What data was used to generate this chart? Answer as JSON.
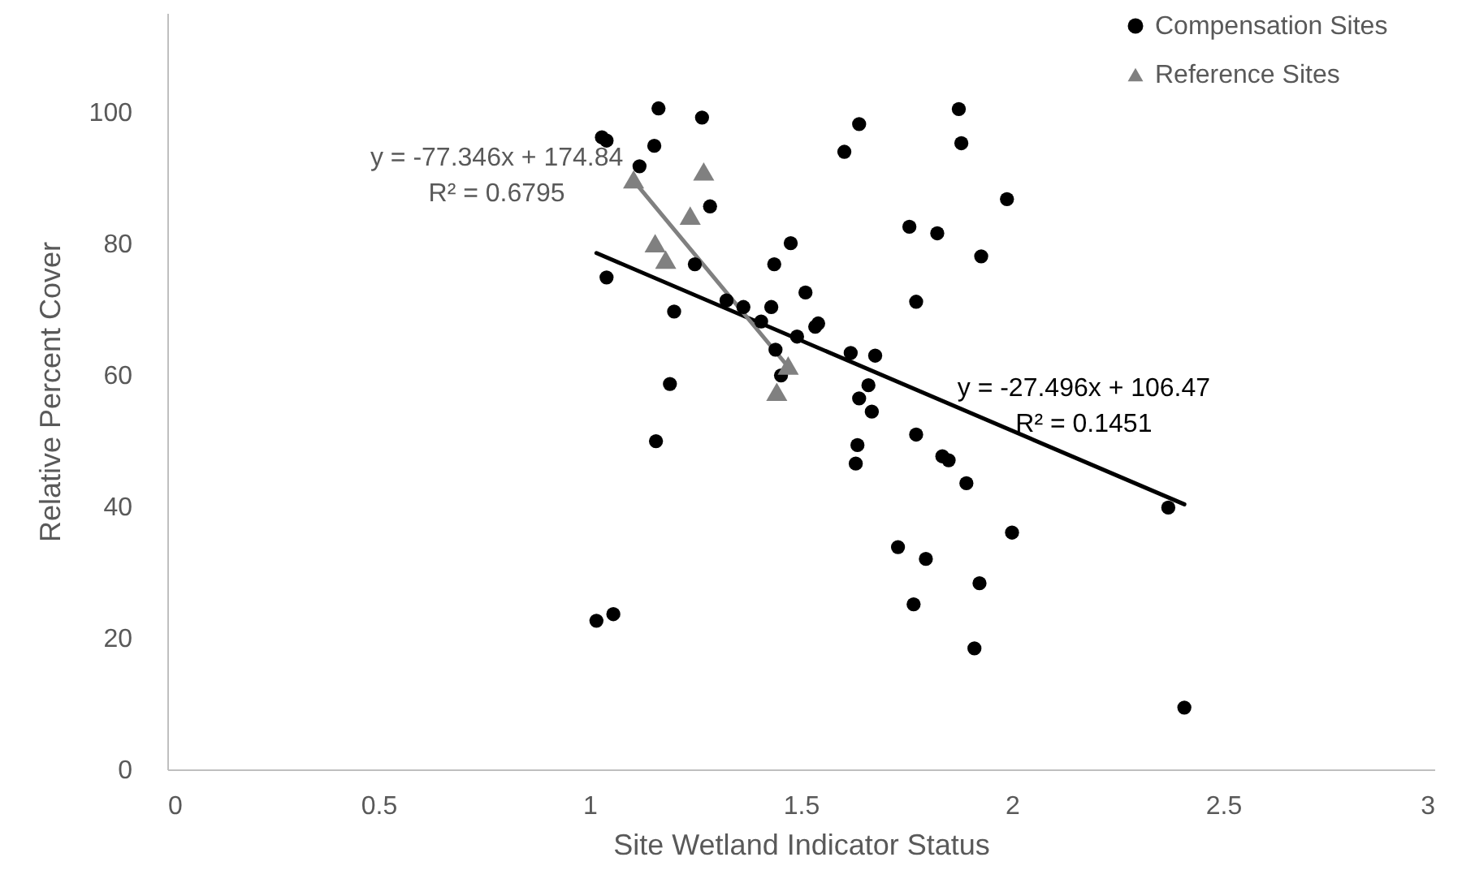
{
  "chart_data": {
    "type": "scatter",
    "xlabel": "Site Wetland Indicator Status",
    "ylabel": "Relative Percent Cover",
    "xlim": [
      0,
      3
    ],
    "xticks": [
      0,
      0.5,
      1,
      1.5,
      2,
      2.5,
      3
    ],
    "ylim": [
      0,
      115
    ],
    "yticks": [
      0,
      20,
      40,
      60,
      80,
      100
    ],
    "grid": false,
    "legend": "top right",
    "series": [
      {
        "name": "Compensation Sites",
        "marker": "circle",
        "color": "#000000",
        "x": [
          1.029,
          1.04,
          1.163,
          1.266,
          1.153,
          1.118,
          1.285,
          1.04,
          1.249,
          1.2,
          1.324,
          1.19,
          1.157,
          1.016,
          1.056,
          1.638,
          1.603,
          1.874,
          1.88,
          1.988,
          1.757,
          1.823,
          1.927,
          1.476,
          1.437,
          1.773,
          1.511,
          1.364,
          1.43,
          1.406,
          1.534,
          1.541,
          1.491,
          1.44,
          1.453,
          1.618,
          1.676,
          1.66,
          1.638,
          1.668,
          1.634,
          1.773,
          1.63,
          1.835,
          1.85,
          1.892,
          2.37,
          2.0,
          1.73,
          1.796,
          1.923,
          1.767,
          1.911,
          2.408
        ],
        "values": [
          96.1,
          95.6,
          100.5,
          99.1,
          94.8,
          91.7,
          85.6,
          74.8,
          76.8,
          69.6,
          71.3,
          58.6,
          49.9,
          22.6,
          23.6,
          98.1,
          93.9,
          100.4,
          95.2,
          86.7,
          82.5,
          81.5,
          78,
          80,
          76.8,
          71.1,
          72.5,
          70.3,
          70.3,
          68.1,
          67.3,
          67.8,
          65.8,
          63.8,
          59.9,
          63.3,
          62.9,
          58.4,
          56.4,
          54.4,
          49.3,
          50.9,
          46.5,
          47.6,
          47,
          43.5,
          39.8,
          36,
          33.8,
          32,
          28.3,
          25.1,
          18.4,
          9.4
        ]
      },
      {
        "name": "Reference Sites",
        "marker": "triangle",
        "color": "#808080",
        "x": [
          1.104,
          1.27,
          1.238,
          1.155,
          1.18,
          1.47,
          1.443
        ],
        "values": [
          89.7,
          90.9,
          84.2,
          80,
          77.5,
          61.4,
          57.4
        ]
      },
      {
        "type": "line",
        "color": "#000000",
        "x": [
          1.016,
          2.408
        ],
        "values": [
          78.5,
          40.3
        ]
      },
      {
        "type": "line",
        "color": "#808080",
        "x": [
          1.104,
          1.47
        ],
        "values": [
          89.5,
          61.2
        ]
      }
    ],
    "annotations": [
      "y = -77.346x + 174.84\nR² = 0.6795",
      "y = -27.496x + 106.47\nR² = 0.1451"
    ]
  }
}
